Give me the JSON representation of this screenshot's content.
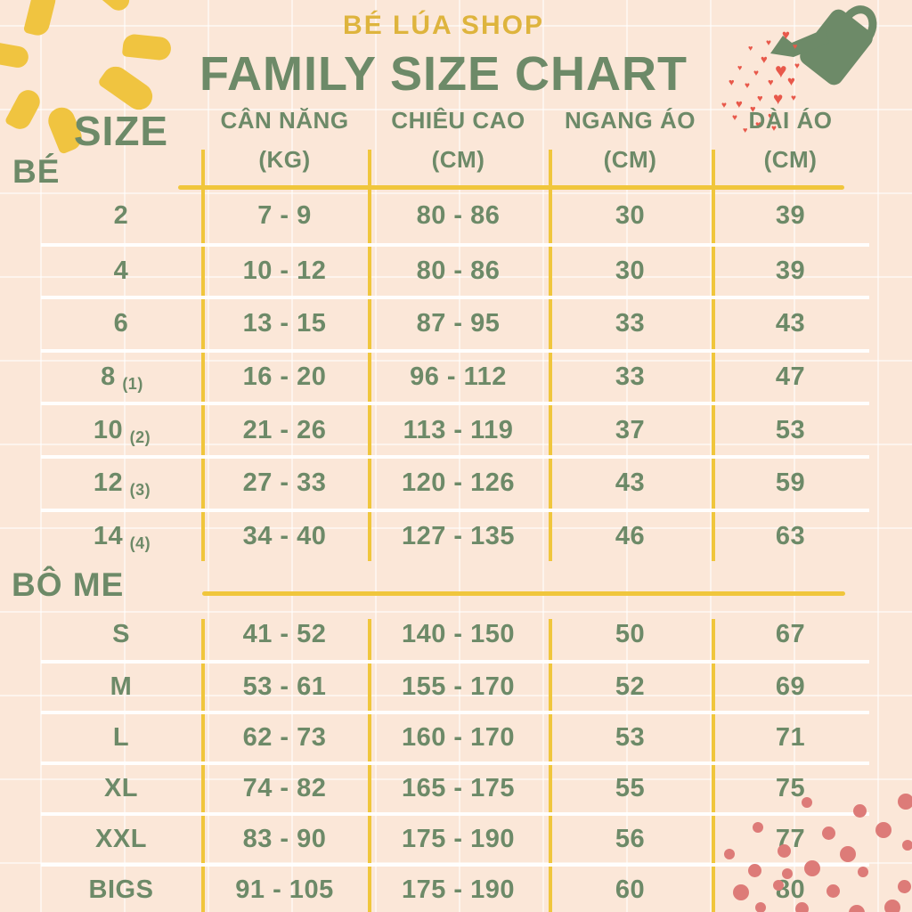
{
  "header": {
    "shop_name": "BÉ LÚA SHOP",
    "title": "FAMILY SIZE CHART"
  },
  "table": {
    "size_label": "SIZE",
    "columns": [
      {
        "line1": "CÂN NĂNG",
        "line2": "(KG)"
      },
      {
        "line1": "CHIÊU CAO",
        "line2": "(CM)"
      },
      {
        "line1": "NGANG ÁO",
        "line2": "(CM)"
      },
      {
        "line1": "DÀI ÁO",
        "line2": "(CM)"
      }
    ],
    "sections": [
      {
        "label": "BÉ",
        "rows": [
          {
            "size": "2",
            "note": "",
            "weight_kg": "7 - 9",
            "height_cm": "80 - 86",
            "chest_cm": "30",
            "length_cm": "39"
          },
          {
            "size": "4",
            "note": "",
            "weight_kg": "10 - 12",
            "height_cm": "80 - 86",
            "chest_cm": "30",
            "length_cm": "39"
          },
          {
            "size": "6",
            "note": "",
            "weight_kg": "13 - 15",
            "height_cm": "87 - 95",
            "chest_cm": "33",
            "length_cm": "43"
          },
          {
            "size": "8",
            "note": "(1)",
            "weight_kg": "16 - 20",
            "height_cm": "96 - 112",
            "chest_cm": "33",
            "length_cm": "47"
          },
          {
            "size": "10",
            "note": "(2)",
            "weight_kg": "21 - 26",
            "height_cm": "113 - 119",
            "chest_cm": "37",
            "length_cm": "53"
          },
          {
            "size": "12",
            "note": "(3)",
            "weight_kg": "27 - 33",
            "height_cm": "120 - 126",
            "chest_cm": "43",
            "length_cm": "59"
          },
          {
            "size": "14",
            "note": "(4)",
            "weight_kg": "34 - 40",
            "height_cm": "127 - 135",
            "chest_cm": "46",
            "length_cm": "63"
          }
        ]
      },
      {
        "label": "BÔ ME",
        "rows": [
          {
            "size": "S",
            "note": "",
            "weight_kg": "41 - 52",
            "height_cm": "140 - 150",
            "chest_cm": "50",
            "length_cm": "67"
          },
          {
            "size": "M",
            "note": "",
            "weight_kg": "53 - 61",
            "height_cm": "155 - 170",
            "chest_cm": "52",
            "length_cm": "69"
          },
          {
            "size": "L",
            "note": "",
            "weight_kg": "62 - 73",
            "height_cm": "160 - 170",
            "chest_cm": "53",
            "length_cm": "71"
          },
          {
            "size": "XL",
            "note": "",
            "weight_kg": "74 - 82",
            "height_cm": "165 - 175",
            "chest_cm": "55",
            "length_cm": "75"
          },
          {
            "size": "XXL",
            "note": "",
            "weight_kg": "83 - 90",
            "height_cm": "175 - 190",
            "chest_cm": "56",
            "length_cm": "77"
          },
          {
            "size": "BIGS",
            "note": "",
            "weight_kg": "91 - 105",
            "height_cm": "175 - 190",
            "chest_cm": "60",
            "length_cm": "80"
          }
        ]
      }
    ]
  },
  "decorations": {
    "sun": "sun-rays-icon",
    "watering_can": "watering-can-icon",
    "hearts": "heart-spray-icon",
    "dots": "dot-pattern"
  },
  "colors": {
    "background": "#fbe7d8",
    "text_green": "#6d8a68",
    "accent_yellow": "#f0c63c",
    "title_yellow": "#deb43d",
    "heart_red": "#e8584a",
    "dot_pink": "#dd7b78"
  }
}
